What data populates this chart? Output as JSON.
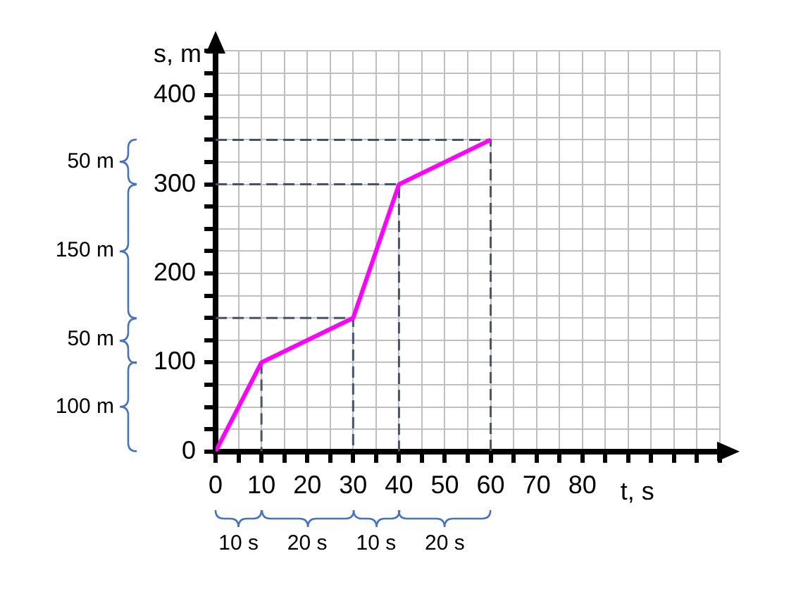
{
  "chart_data": {
    "type": "line",
    "xlabel": "t, s",
    "ylabel": "s, m",
    "x": [
      0,
      10,
      30,
      40,
      60
    ],
    "series": [
      {
        "color": "#ff00ff",
        "values": [
          0,
          100,
          150,
          300,
          350
        ]
      },
      {
        "color": "#44546a",
        "line_style": "dashed",
        "x": [
          10,
          10
        ],
        "values": [
          100,
          0
        ]
      },
      {
        "color": "#44546a",
        "line_style": "dashed",
        "x": [
          0,
          30,
          30
        ],
        "values": [
          150,
          150,
          0
        ]
      },
      {
        "color": "#44546a",
        "line_style": "dashed",
        "x": [
          0,
          40,
          40
        ],
        "values": [
          300,
          300,
          0
        ]
      },
      {
        "color": "#44546a",
        "line_style": "dashed",
        "x": [
          0,
          60,
          60
        ],
        "values": [
          350,
          350,
          0
        ]
      }
    ],
    "xlim": [
      0,
      110
    ],
    "ylim": [
      0,
      450
    ],
    "xticks": [
      0,
      {
        "value": 5,
        "label": null
      },
      10,
      {
        "value": 15,
        "label": null
      },
      20,
      {
        "value": 25,
        "label": null
      },
      30,
      {
        "value": 35,
        "label": null
      },
      40,
      {
        "value": 45,
        "label": null
      },
      50,
      {
        "value": 55,
        "label": null
      },
      60,
      {
        "value": 65,
        "label": null
      },
      70,
      {
        "value": 75,
        "label": null
      },
      80,
      {
        "value": 85,
        "label": null
      },
      {
        "value": 90,
        "label": null
      },
      {
        "value": 95,
        "label": null
      },
      {
        "value": 100,
        "label": null
      },
      {
        "value": 105,
        "label": null
      },
      {
        "value": 110,
        "label": null
      }
    ],
    "yticks": [
      0,
      {
        "value": 25,
        "label": null
      },
      {
        "value": 50,
        "label": null
      },
      {
        "value": 75,
        "label": null
      },
      100,
      {
        "value": 125,
        "label": null
      },
      {
        "value": 150,
        "label": null
      },
      {
        "value": 175,
        "label": null
      },
      200,
      {
        "value": 225,
        "label": null
      },
      {
        "value": 250,
        "label": null
      },
      {
        "value": 275,
        "label": null
      },
      300,
      {
        "value": 325,
        "label": null
      },
      {
        "value": 350,
        "label": null
      },
      {
        "value": 375,
        "label": null
      },
      400,
      {
        "value": 425,
        "label": null
      },
      {
        "value": 450,
        "label": null
      }
    ],
    "grid": true,
    "legend": false,
    "marker": "none",
    "line_style": "solid",
    "annotations": [
      "50 m",
      "150 m",
      "50 m",
      "100 m",
      "10 s",
      "20 s",
      "10 s",
      "20 s"
    ]
  }
}
